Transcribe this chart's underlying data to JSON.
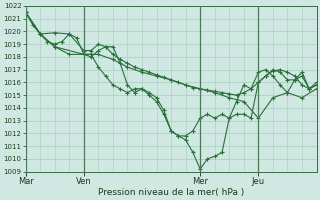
{
  "xlabel": "Pression niveau de la mer( hPa )",
  "ylim": [
    1009,
    1022
  ],
  "yticks": [
    1009,
    1010,
    1011,
    1012,
    1013,
    1014,
    1015,
    1016,
    1017,
    1018,
    1019,
    1020,
    1021,
    1022
  ],
  "day_labels": [
    "Mar",
    "Ven",
    "Mer",
    "Jeu"
  ],
  "day_positions": [
    0,
    8,
    24,
    32
  ],
  "xlim": [
    0,
    40
  ],
  "background_color": "#cfe8e2",
  "grid_color": "#a8ccbe",
  "line_color": "#2a6e3a",
  "line1_x": [
    0,
    1,
    2,
    3,
    4,
    5,
    6,
    7,
    8,
    9,
    10,
    11,
    12,
    13,
    14,
    15,
    16,
    17,
    18,
    19,
    20,
    21,
    22,
    23,
    24,
    25,
    26,
    27,
    28,
    29,
    30,
    31,
    32,
    33,
    34,
    35,
    36,
    37,
    38,
    39,
    40
  ],
  "line1_y": [
    1021.5,
    1020.5,
    1019.8,
    1019.2,
    1019.0,
    1019.2,
    1019.8,
    1019.5,
    1018.2,
    1018.0,
    1018.5,
    1018.8,
    1018.2,
    1017.8,
    1017.5,
    1017.2,
    1017.0,
    1016.8,
    1016.6,
    1016.4,
    1016.2,
    1016.0,
    1015.8,
    1015.6,
    1015.5,
    1015.4,
    1015.3,
    1015.2,
    1015.1,
    1015.0,
    1015.2,
    1015.5,
    1016.0,
    1016.5,
    1016.9,
    1017.0,
    1016.8,
    1016.5,
    1015.8,
    1015.5,
    1015.8
  ],
  "line2_x": [
    0,
    2,
    4,
    6,
    8,
    9,
    10,
    11,
    12,
    13,
    14,
    15,
    16,
    17,
    18,
    19,
    20,
    21,
    22,
    23,
    24,
    25,
    26,
    27,
    28,
    29,
    30,
    31,
    32,
    33,
    34,
    35,
    36,
    37,
    38,
    39,
    40
  ],
  "line2_y": [
    1021.5,
    1019.8,
    1019.9,
    1019.8,
    1018.5,
    1018.5,
    1019.0,
    1018.8,
    1018.8,
    1017.5,
    1015.8,
    1015.2,
    1015.5,
    1015.2,
    1014.8,
    1013.8,
    1012.2,
    1011.8,
    1011.8,
    1012.2,
    1013.2,
    1013.5,
    1013.2,
    1013.5,
    1013.2,
    1014.5,
    1015.8,
    1015.5,
    1016.8,
    1017.0,
    1016.5,
    1015.8,
    1015.2,
    1016.2,
    1016.5,
    1015.5,
    1016.0
  ],
  "line3_x": [
    0,
    2,
    4,
    8,
    10,
    12,
    14,
    16,
    18,
    20,
    22,
    24,
    26,
    28,
    30,
    32,
    34,
    36,
    38,
    40
  ],
  "line3_y": [
    1021.5,
    1019.8,
    1018.8,
    1018.2,
    1018.2,
    1017.8,
    1017.2,
    1016.8,
    1016.5,
    1016.2,
    1015.8,
    1015.5,
    1015.2,
    1014.8,
    1014.5,
    1013.2,
    1014.8,
    1015.2,
    1014.8,
    1015.5
  ],
  "line4_x": [
    0,
    2,
    4,
    6,
    8,
    9,
    10,
    11,
    12,
    13,
    14,
    15,
    16,
    17,
    18,
    19,
    20,
    21,
    22,
    23,
    24,
    25,
    26,
    27,
    28,
    29,
    30,
    31,
    32,
    33,
    34,
    35,
    36,
    37,
    38,
    39,
    40
  ],
  "line4_y": [
    1021.5,
    1019.8,
    1018.8,
    1018.2,
    1018.2,
    1018.2,
    1017.2,
    1016.5,
    1015.8,
    1015.5,
    1015.2,
    1015.5,
    1015.5,
    1015.0,
    1014.5,
    1013.5,
    1012.2,
    1011.8,
    1011.5,
    1010.5,
    1009.2,
    1010.0,
    1010.2,
    1010.5,
    1013.2,
    1013.5,
    1013.5,
    1013.2,
    1016.0,
    1016.5,
    1017.0,
    1016.8,
    1016.2,
    1016.2,
    1016.8,
    1015.5,
    1015.8
  ]
}
